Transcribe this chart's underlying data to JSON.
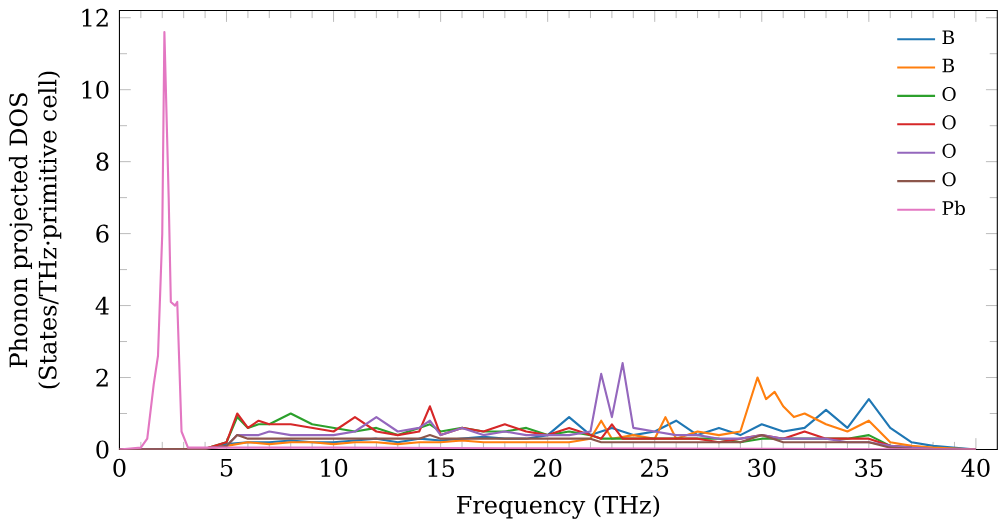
{
  "chart_data": {
    "type": "line",
    "xlabel": "Frequency (THz)",
    "ylabel": "Phonon projected DOS\n(States/THz·primitive cell)",
    "xlim": [
      0,
      41
    ],
    "ylim": [
      0,
      12.2
    ],
    "xticks": [
      0,
      5,
      10,
      15,
      20,
      25,
      30,
      35,
      40
    ],
    "yticks": [
      0,
      2,
      4,
      6,
      8,
      10,
      12
    ],
    "legend": "top right",
    "grid": false,
    "series": [
      {
        "name": "B",
        "color": "#1f77b4",
        "x": [
          0,
          4,
          5,
          6,
          7,
          8,
          9,
          10,
          11,
          12,
          13,
          14,
          15,
          16,
          17,
          18,
          19,
          20,
          21,
          22,
          23,
          24,
          25,
          26,
          27,
          28,
          29,
          30,
          31,
          32,
          33,
          34,
          35,
          36,
          37,
          38,
          40
        ],
        "values": [
          0,
          0.02,
          0.15,
          0.2,
          0.2,
          0.25,
          0.2,
          0.2,
          0.25,
          0.3,
          0.2,
          0.3,
          0.25,
          0.3,
          0.35,
          0.3,
          0.3,
          0.4,
          0.9,
          0.4,
          0.6,
          0.4,
          0.5,
          0.8,
          0.4,
          0.6,
          0.4,
          0.7,
          0.5,
          0.6,
          1.1,
          0.6,
          1.4,
          0.6,
          0.2,
          0.1,
          0
        ]
      },
      {
        "name": "B",
        "color": "#ff7f0e",
        "x": [
          0,
          4,
          5,
          6,
          7,
          8,
          9,
          10,
          11,
          12,
          13,
          14,
          15,
          16,
          17,
          18,
          19,
          20,
          21,
          22,
          22.5,
          23,
          24,
          25,
          25.5,
          26,
          27,
          28,
          29,
          29.8,
          30.2,
          30.6,
          31,
          31.5,
          32,
          33,
          34,
          35,
          36,
          37,
          38,
          40
        ],
        "values": [
          0,
          0.02,
          0.1,
          0.2,
          0.15,
          0.2,
          0.2,
          0.15,
          0.2,
          0.2,
          0.15,
          0.2,
          0.2,
          0.25,
          0.2,
          0.2,
          0.2,
          0.2,
          0.2,
          0.3,
          0.8,
          0.3,
          0.4,
          0.3,
          0.9,
          0.3,
          0.5,
          0.4,
          0.5,
          2.0,
          1.4,
          1.6,
          1.2,
          0.9,
          1.0,
          0.7,
          0.5,
          0.8,
          0.2,
          0.1,
          0.05,
          0
        ]
      },
      {
        "name": "O",
        "color": "#2ca02c",
        "x": [
          0,
          4,
          5,
          5.5,
          6,
          6.5,
          7,
          8,
          9,
          10,
          11,
          12,
          13,
          14,
          14.5,
          15,
          16,
          17,
          18,
          19,
          20,
          21,
          22,
          22.5,
          23,
          23.5,
          24,
          25,
          26,
          27,
          28,
          29,
          30,
          31,
          32,
          33,
          34,
          35,
          36,
          37
        ],
        "values": [
          0,
          0.02,
          0.2,
          0.9,
          0.6,
          0.7,
          0.7,
          1.0,
          0.7,
          0.6,
          0.5,
          0.6,
          0.4,
          0.6,
          0.7,
          0.5,
          0.6,
          0.5,
          0.5,
          0.6,
          0.4,
          0.5,
          0.4,
          0.3,
          0.3,
          0.3,
          0.3,
          0.3,
          0.3,
          0.3,
          0.3,
          0.2,
          0.3,
          0.3,
          0.3,
          0.3,
          0.3,
          0.4,
          0.1,
          0.05
        ]
      },
      {
        "name": "O",
        "color": "#d62728",
        "x": [
          0,
          4,
          5,
          5.5,
          6,
          6.5,
          7,
          8,
          9,
          10,
          11,
          12,
          13,
          14,
          14.5,
          15,
          16,
          17,
          18,
          19,
          20,
          21,
          22,
          22.5,
          23,
          23.5,
          24,
          25,
          26,
          27,
          28,
          29,
          30,
          31,
          32,
          33,
          34,
          35,
          36,
          37
        ],
        "values": [
          0,
          0.02,
          0.2,
          1.0,
          0.6,
          0.8,
          0.7,
          0.7,
          0.6,
          0.5,
          0.9,
          0.5,
          0.4,
          0.5,
          1.2,
          0.4,
          0.6,
          0.5,
          0.7,
          0.5,
          0.4,
          0.6,
          0.4,
          0.3,
          0.7,
          0.3,
          0.3,
          0.3,
          0.3,
          0.3,
          0.2,
          0.3,
          0.4,
          0.3,
          0.5,
          0.3,
          0.3,
          0.3,
          0.1,
          0.05
        ]
      },
      {
        "name": "O",
        "color": "#9467bd",
        "x": [
          0,
          4,
          5,
          5.5,
          6,
          6.5,
          7,
          8,
          9,
          10,
          11,
          12,
          13,
          14,
          14.5,
          15,
          16,
          17,
          18,
          19,
          20,
          21,
          22,
          22.5,
          23,
          23.5,
          24,
          25,
          26,
          27,
          28,
          29,
          30,
          31,
          32,
          33,
          34,
          35,
          36,
          37,
          38,
          40
        ],
        "values": [
          0,
          0.02,
          0.1,
          0.4,
          0.4,
          0.4,
          0.5,
          0.4,
          0.4,
          0.4,
          0.5,
          0.9,
          0.5,
          0.6,
          0.8,
          0.4,
          0.6,
          0.4,
          0.5,
          0.4,
          0.4,
          0.4,
          0.5,
          2.1,
          0.9,
          2.4,
          0.6,
          0.5,
          0.4,
          0.4,
          0.3,
          0.3,
          0.4,
          0.3,
          0.3,
          0.3,
          0.2,
          0.2,
          0.1,
          0.05,
          0.02,
          0
        ]
      },
      {
        "name": "O",
        "color": "#8c564b",
        "x": [
          0,
          4,
          5,
          5.5,
          6,
          6.5,
          7,
          8,
          9,
          10,
          11,
          12,
          13,
          14,
          14.5,
          15,
          16,
          17,
          18,
          19,
          20,
          21,
          22,
          22.5,
          23,
          23.5,
          24,
          25,
          26,
          27,
          28,
          29,
          30,
          31,
          32,
          33,
          34,
          35,
          36,
          37,
          38,
          40
        ],
        "values": [
          0,
          0.02,
          0.1,
          0.4,
          0.3,
          0.3,
          0.3,
          0.3,
          0.3,
          0.3,
          0.3,
          0.3,
          0.3,
          0.3,
          0.4,
          0.3,
          0.3,
          0.3,
          0.3,
          0.3,
          0.3,
          0.3,
          0.3,
          0.2,
          0.2,
          0.2,
          0.2,
          0.2,
          0.2,
          0.2,
          0.2,
          0.2,
          0.4,
          0.2,
          0.2,
          0.2,
          0.2,
          0.2,
          0.05,
          0.02,
          0.01,
          0
        ]
      },
      {
        "name": "Pb",
        "color": "#e377c2",
        "x": [
          0,
          1,
          1.3,
          1.6,
          1.8,
          2.0,
          2.1,
          2.3,
          2.4,
          2.6,
          2.7,
          2.9,
          3.2,
          4,
          6,
          10,
          20,
          30,
          40
        ],
        "values": [
          0,
          0.05,
          0.3,
          1.8,
          2.6,
          6,
          11.6,
          7,
          4.1,
          4.0,
          4.1,
          0.5,
          0.05,
          0.05,
          0.05,
          0.05,
          0.03,
          0.02,
          0
        ]
      }
    ]
  }
}
